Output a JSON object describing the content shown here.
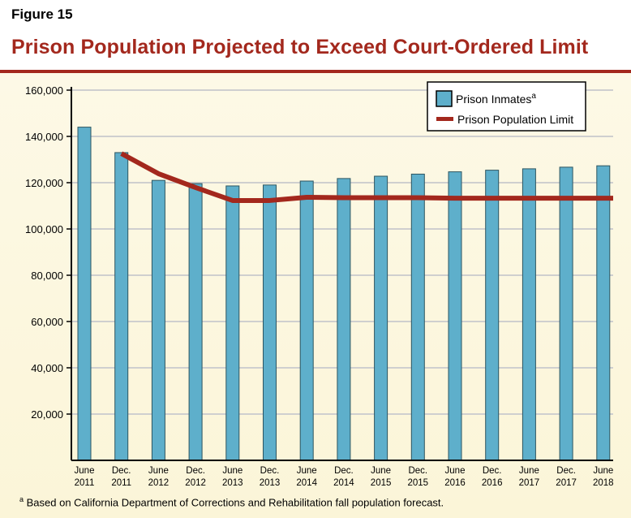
{
  "figure_label": "Figure 15",
  "title": "Prison Population Projected to Exceed Court-Ordered Limit",
  "footnote_marker": "a",
  "footnote": "Based on California Department of Corrections and Rehabilitation fall population forecast.",
  "colors": {
    "bar": "#5eafcb",
    "line": "#a3281d",
    "title": "#a3281d"
  },
  "chart_data": {
    "type": "bar",
    "categories": [
      [
        "June",
        "2011"
      ],
      [
        "Dec.",
        "2011"
      ],
      [
        "June",
        "2012"
      ],
      [
        "Dec.",
        "2012"
      ],
      [
        "June",
        "2013"
      ],
      [
        "Dec.",
        "2013"
      ],
      [
        "June",
        "2014"
      ],
      [
        "Dec.",
        "2014"
      ],
      [
        "June",
        "2015"
      ],
      [
        "Dec.",
        "2015"
      ],
      [
        "June",
        "2016"
      ],
      [
        "Dec.",
        "2016"
      ],
      [
        "June",
        "2017"
      ],
      [
        "Dec.",
        "2017"
      ],
      [
        "June",
        "2018"
      ]
    ],
    "series": [
      {
        "name": "Prison Inmates",
        "superscript": "a",
        "type": "bar",
        "values": [
          144000,
          133000,
          121000,
          119600,
          118600,
          119000,
          120700,
          121800,
          122800,
          123700,
          124700,
          125400,
          126000,
          126700,
          127300
        ]
      },
      {
        "name": "Prison Population Limit",
        "type": "line",
        "values": [
          null,
          132600,
          123900,
          117900,
          112300,
          112300,
          113700,
          113500,
          113500,
          113500,
          113300,
          113300,
          113300,
          113300,
          113300
        ]
      }
    ],
    "ylim": [
      0,
      160000
    ],
    "yticks": [
      "20,000",
      "40,000",
      "60,000",
      "80,000",
      "100,000",
      "120,000",
      "140,000",
      "160,000"
    ],
    "grid": true,
    "legend": "top-right"
  }
}
